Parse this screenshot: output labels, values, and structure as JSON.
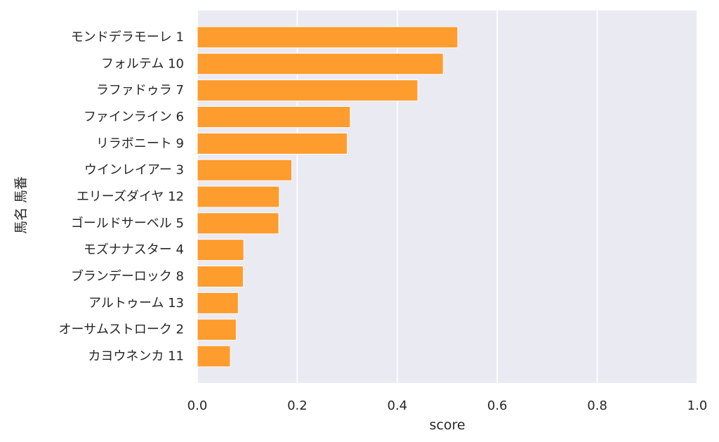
{
  "chart_data": {
    "type": "bar",
    "orientation": "horizontal",
    "categories": [
      "モンドデラモーレ 1",
      "フォルテム 10",
      "ラファドゥラ 7",
      "ファインライン 6",
      "リラボニート 9",
      "ウインレイアー 3",
      "エリーズダイヤ 12",
      "ゴールドサーベル 5",
      "モズナナスター 4",
      "ブランデーロック 8",
      "アルトゥーム 13",
      "オーサムストローク 2",
      "カヨウネンカ 11"
    ],
    "values": [
      0.521,
      0.492,
      0.441,
      0.306,
      0.3,
      0.189,
      0.164,
      0.163,
      0.093,
      0.092,
      0.082,
      0.078,
      0.066
    ],
    "xlabel": "score",
    "ylabel": "馬名 馬番",
    "xlim": [
      0,
      1.0
    ],
    "xticks": [
      "0.0",
      "0.2",
      "0.4",
      "0.6",
      "0.8",
      "1.0"
    ],
    "grid": true,
    "colors": {
      "bar": "#ff9c2e",
      "bar_edge": "#ffffff",
      "plot_bg": "#eaeaf2",
      "grid": "#ffffff"
    }
  }
}
